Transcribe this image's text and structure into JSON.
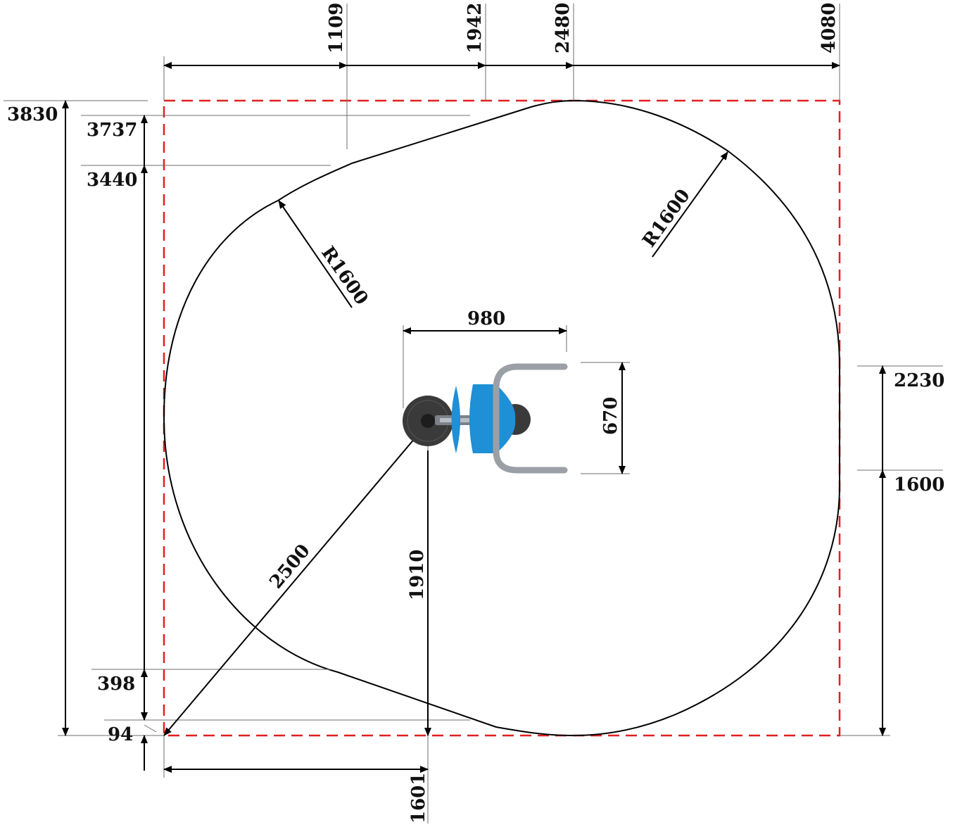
{
  "colors": {
    "boundary": "#e02020",
    "seat_blue": "#1f8fd6",
    "base_dark": "#3a3a3a",
    "handle_grey": "#9aa0a6"
  },
  "dimensions": {
    "top": [
      "1109",
      "1942",
      "2480",
      "4080"
    ],
    "left_outer": "3830",
    "left_inner": [
      "3737",
      "3440",
      "398",
      "94"
    ],
    "right": [
      "2230",
      "1600"
    ],
    "bottom": "1601",
    "radius_left": "R1600",
    "radius_right": "R1600",
    "radius_diagonal": "2500",
    "vertical_center": "1910",
    "equipment_width": "980",
    "equipment_depth": "670"
  }
}
